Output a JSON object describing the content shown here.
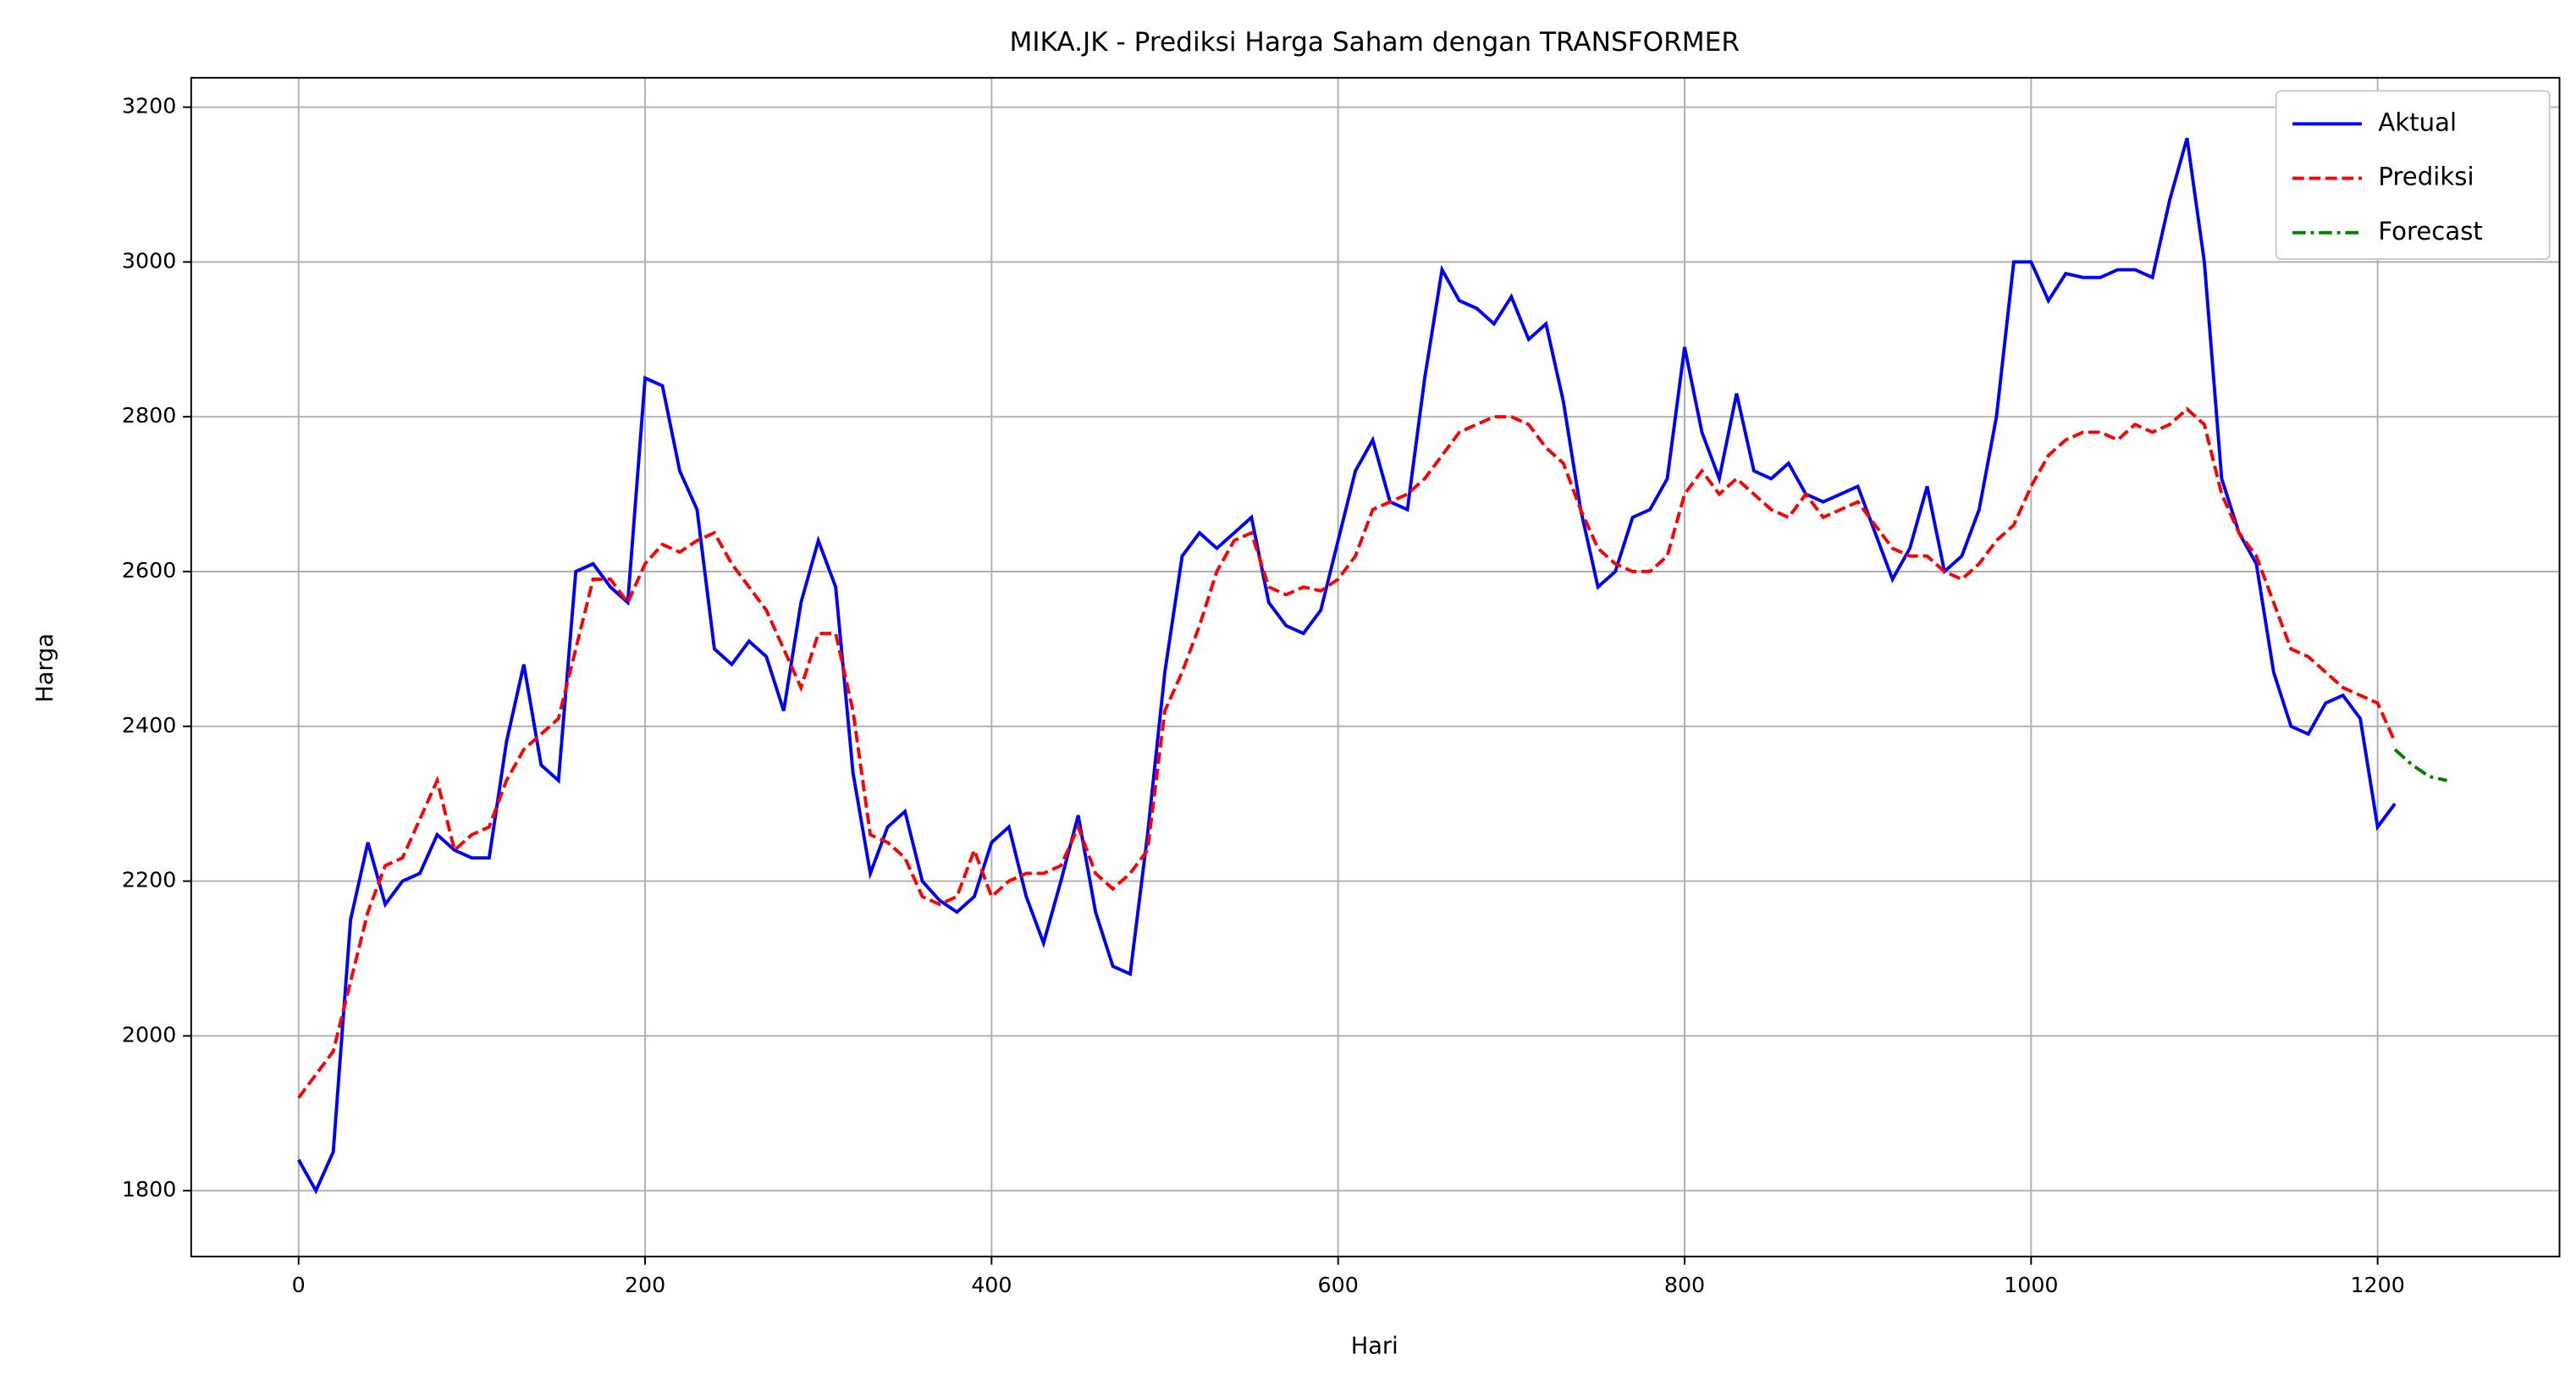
{
  "chart_data": {
    "type": "line",
    "title": "MIKA.JK - Prediksi Harga Saham dengan TRANSFORMER",
    "x_label": "Hari",
    "y_label": "Harga",
    "x": [
      0,
      10,
      20,
      30,
      40,
      50,
      60,
      70,
      80,
      90,
      100,
      110,
      120,
      130,
      140,
      150,
      160,
      170,
      180,
      190,
      200,
      210,
      220,
      230,
      240,
      250,
      260,
      270,
      280,
      290,
      300,
      310,
      320,
      330,
      340,
      350,
      360,
      370,
      380,
      390,
      400,
      410,
      420,
      430,
      440,
      450,
      460,
      470,
      480,
      490,
      500,
      510,
      520,
      530,
      540,
      550,
      560,
      570,
      580,
      590,
      600,
      610,
      620,
      630,
      640,
      650,
      660,
      670,
      680,
      690,
      700,
      710,
      720,
      730,
      740,
      750,
      760,
      770,
      780,
      790,
      800,
      810,
      820,
      830,
      840,
      850,
      860,
      870,
      880,
      890,
      900,
      910,
      920,
      930,
      940,
      950,
      960,
      970,
      980,
      990,
      1000,
      1010,
      1020,
      1030,
      1040,
      1050,
      1060,
      1070,
      1080,
      1090,
      1100,
      1110,
      1120,
      1130,
      1140,
      1150,
      1160,
      1170,
      1180,
      1190,
      1200,
      1210,
      1220,
      1230,
      1240
    ],
    "series": [
      {
        "name": "Aktual",
        "color": "#0000ff",
        "dash": "solid",
        "values": [
          1840,
          1800,
          1850,
          2150,
          2250,
          2170,
          2200,
          2210,
          2260,
          2240,
          2230,
          2230,
          2380,
          2480,
          2350,
          2330,
          2600,
          2610,
          2580,
          2560,
          2850,
          2840,
          2730,
          2680,
          2500,
          2480,
          2510,
          2490,
          2420,
          2560,
          2640,
          2580,
          2340,
          2210,
          2270,
          2290,
          2200,
          2175,
          2160,
          2180,
          2250,
          2270,
          2180,
          2120,
          2200,
          2285,
          2160,
          2090,
          2080,
          2260,
          2470,
          2620,
          2650,
          2630,
          2650,
          2670,
          2560,
          2530,
          2520,
          2550,
          2640,
          2730,
          2770,
          2690,
          2680,
          2850,
          2990,
          2950,
          2940,
          2920,
          2955,
          2900,
          2920,
          2820,
          2680,
          2580,
          2600,
          2670,
          2680,
          2720,
          2890,
          2780,
          2720,
          2830,
          2730,
          2720,
          2740,
          2700,
          2690,
          2700,
          2710,
          2650,
          2590,
          2630,
          2710,
          2600,
          2620,
          2680,
          2800,
          3000,
          3000,
          2950,
          2985,
          2980,
          2980,
          2990,
          2990,
          2980,
          3080,
          3160,
          3000,
          2720,
          2650,
          2610,
          2470,
          2400,
          2390,
          2430,
          2440,
          2410,
          2270,
          2300,
          null,
          null,
          null
        ]
      },
      {
        "name": "Prediksi",
        "color": "#ff0000",
        "dash": "dashed",
        "values": [
          1920,
          1950,
          1980,
          2070,
          2160,
          2220,
          2230,
          2280,
          2330,
          2240,
          2260,
          2270,
          2330,
          2370,
          2390,
          2410,
          2500,
          2590,
          2590,
          2560,
          2610,
          2635,
          2625,
          2640,
          2650,
          2610,
          2580,
          2550,
          2500,
          2450,
          2520,
          2520,
          2420,
          2260,
          2250,
          2230,
          2180,
          2170,
          2180,
          2240,
          2180,
          2200,
          2210,
          2210,
          2220,
          2270,
          2210,
          2190,
          2210,
          2240,
          2420,
          2470,
          2530,
          2600,
          2640,
          2650,
          2580,
          2570,
          2580,
          2575,
          2590,
          2620,
          2680,
          2690,
          2700,
          2720,
          2750,
          2780,
          2790,
          2800,
          2800,
          2790,
          2760,
          2740,
          2680,
          2630,
          2610,
          2600,
          2600,
          2620,
          2700,
          2730,
          2700,
          2720,
          2700,
          2680,
          2670,
          2700,
          2670,
          2680,
          2690,
          2660,
          2630,
          2620,
          2620,
          2600,
          2590,
          2610,
          2640,
          2660,
          2710,
          2750,
          2770,
          2780,
          2780,
          2770,
          2790,
          2780,
          2790,
          2810,
          2790,
          2700,
          2650,
          2620,
          2560,
          2500,
          2490,
          2470,
          2450,
          2440,
          2430,
          2380,
          null,
          null,
          null
        ]
      },
      {
        "name": "Forecast",
        "color": "#008000",
        "dash": "dashdot",
        "values": [
          null,
          null,
          null,
          null,
          null,
          null,
          null,
          null,
          null,
          null,
          null,
          null,
          null,
          null,
          null,
          null,
          null,
          null,
          null,
          null,
          null,
          null,
          null,
          null,
          null,
          null,
          null,
          null,
          null,
          null,
          null,
          null,
          null,
          null,
          null,
          null,
          null,
          null,
          null,
          null,
          null,
          null,
          null,
          null,
          null,
          null,
          null,
          null,
          null,
          null,
          null,
          null,
          null,
          null,
          null,
          null,
          null,
          null,
          null,
          null,
          null,
          null,
          null,
          null,
          null,
          null,
          null,
          null,
          null,
          null,
          null,
          null,
          null,
          null,
          null,
          null,
          null,
          null,
          null,
          null,
          null,
          null,
          null,
          null,
          null,
          null,
          null,
          null,
          null,
          null,
          null,
          null,
          null,
          null,
          null,
          null,
          null,
          null,
          null,
          null,
          null,
          null,
          null,
          null,
          null,
          null,
          null,
          null,
          null,
          null,
          null,
          null,
          null,
          null,
          null,
          null,
          null,
          null,
          null,
          null,
          null,
          2370,
          2350,
          2335,
          2330
        ]
      }
    ],
    "xlim": [
      -62,
      1305
    ],
    "ylim": [
      1715,
      3238
    ],
    "xticks": [
      0,
      200,
      400,
      600,
      800,
      1000,
      1200
    ],
    "yticks": [
      1800,
      2000,
      2200,
      2400,
      2600,
      2800,
      3000,
      3200
    ],
    "grid": true,
    "legend": "upper right"
  }
}
